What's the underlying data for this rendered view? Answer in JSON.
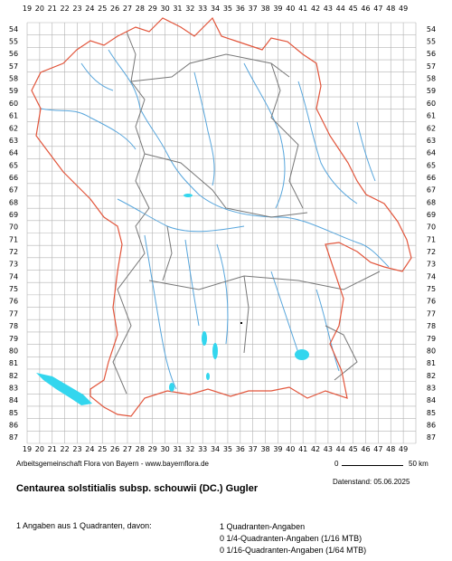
{
  "grid": {
    "x_labels": [
      "19",
      "20",
      "21",
      "22",
      "23",
      "24",
      "25",
      "26",
      "27",
      "28",
      "29",
      "30",
      "31",
      "32",
      "33",
      "34",
      "35",
      "36",
      "37",
      "38",
      "39",
      "40",
      "41",
      "42",
      "43",
      "44",
      "45",
      "46",
      "47",
      "48",
      "49"
    ],
    "y_labels": [
      "54",
      "55",
      "56",
      "57",
      "58",
      "59",
      "60",
      "61",
      "62",
      "63",
      "64",
      "65",
      "66",
      "67",
      "68",
      "69",
      "70",
      "71",
      "72",
      "73",
      "74",
      "75",
      "76",
      "77",
      "78",
      "79",
      "80",
      "81",
      "82",
      "83",
      "84",
      "85",
      "86",
      "87"
    ]
  },
  "colors": {
    "state_border": "#e2553b",
    "district_border": "#777777",
    "rivers": "#58a6dc",
    "lakes": "#33d6ee",
    "grid": "#b3b3b3"
  },
  "footer": {
    "credit": "Arbeitsgemeinschaft Flora von Bayern - www.bayernflora.de",
    "scale_zero": "0",
    "scale_max": "50 km",
    "date": "Datenstand: 05.06.2025",
    "title": "Centaurea solstitialis subsp. schouwii (DC.) Gugler",
    "summary": "1 Angaben aus 1 Quadranten, davon:",
    "breakdown": [
      "1 Quadranten-Angaben",
      "0 1/4-Quadranten-Angaben (1/16 MTB)",
      "0 1/16-Quadranten-Angaben (1/64 MTB)"
    ]
  }
}
